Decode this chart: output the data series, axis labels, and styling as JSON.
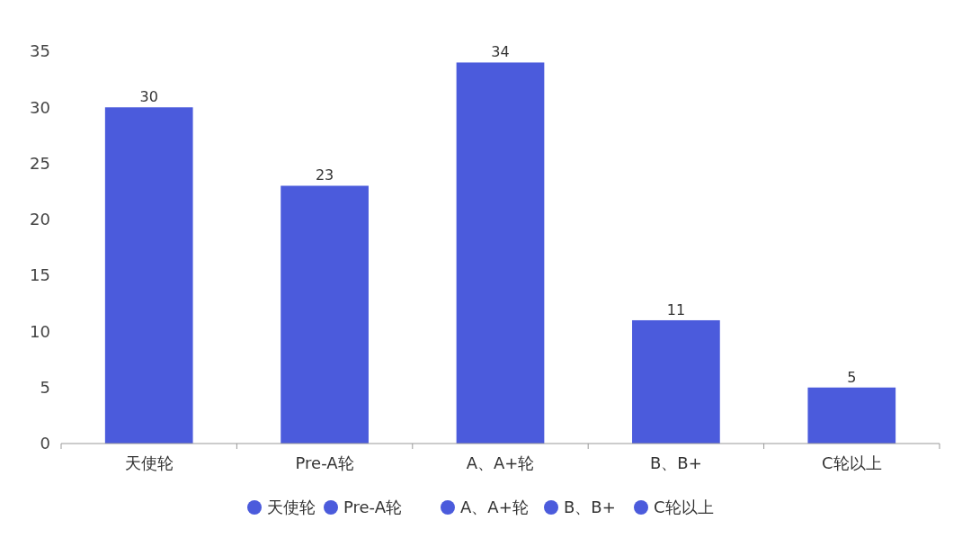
{
  "chart_data": {
    "type": "bar",
    "categories": [
      "天使轮",
      "Pre-A轮",
      "A、A+轮",
      "B、B+",
      "C轮以上"
    ],
    "series": [
      {
        "name": "天使轮",
        "color": "#4b5bdc",
        "values": [
          30,
          null,
          null,
          null,
          null
        ]
      },
      {
        "name": "Pre-A轮",
        "color": "#4b5bdc",
        "values": [
          null,
          23,
          null,
          null,
          null
        ]
      },
      {
        "name": "A、A+轮",
        "color": "#4b5bdc",
        "values": [
          null,
          null,
          34,
          null,
          null
        ]
      },
      {
        "name": "B、B+",
        "color": "#4b5bdc",
        "values": [
          null,
          null,
          null,
          11,
          null
        ]
      },
      {
        "name": "C轮以上",
        "color": "#4b5bdc",
        "values": [
          null,
          null,
          null,
          null,
          5
        ]
      }
    ],
    "stacked": true,
    "ylim": [
      0,
      35
    ],
    "yticks": [
      0,
      5,
      10,
      15,
      20,
      25,
      30,
      35
    ],
    "data_labels": true,
    "legend": "bottom"
  }
}
